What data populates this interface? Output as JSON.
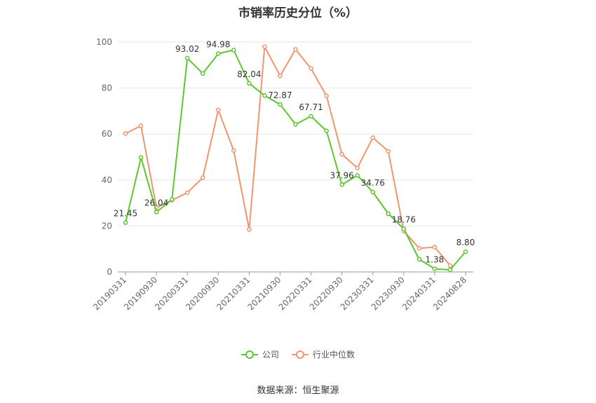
{
  "title": "市销率历史分位（%）",
  "source": "数据来源：恒生聚源",
  "legend": {
    "company": "公司",
    "industry": "行业中位数"
  },
  "colors": {
    "company": "#5bc82d",
    "industry": "#f0956c",
    "grid": "#e6e6e6",
    "axis": "#999999",
    "text": "#666666"
  },
  "chart_data": {
    "type": "line",
    "xlabel": "",
    "ylabel": "",
    "ylim": [
      0,
      100
    ],
    "yticks": [
      0,
      20,
      40,
      60,
      80,
      100
    ],
    "x_tick_labels": [
      "20190331",
      "20190930",
      "20200331",
      "20200930",
      "20210331",
      "20210930",
      "20220331",
      "20220930",
      "20230331",
      "20230930",
      "20240331",
      "20240828"
    ],
    "x_tick_indices": [
      0,
      2,
      4,
      6,
      8,
      10,
      12,
      14,
      16,
      18,
      20,
      22
    ],
    "series": [
      {
        "name": "公司",
        "values": [
          21.45,
          49.8,
          26.04,
          31.5,
          93.02,
          86.3,
          94.98,
          96.5,
          82.04,
          76.7,
          72.87,
          64.2,
          67.71,
          61.4,
          37.96,
          42.0,
          34.76,
          25.3,
          18.76,
          5.5,
          1.38,
          0.9,
          8.8
        ],
        "labels": [
          "21.45",
          "",
          "26.04",
          "",
          "93.02",
          "",
          "94.98",
          "",
          "82.04",
          "",
          "72.87",
          "",
          "67.71",
          "",
          "37.96",
          "",
          "34.76",
          "",
          "18.76",
          "",
          "1.38",
          "",
          "8.80"
        ]
      },
      {
        "name": "行业中位数",
        "values": [
          60.2,
          63.6,
          28.0,
          31.2,
          34.5,
          41.0,
          70.5,
          52.8,
          18.5,
          98.0,
          85.3,
          96.8,
          88.5,
          76.6,
          51.2,
          45.2,
          58.4,
          52.5,
          17.8,
          10.3,
          10.8,
          2.8,
          null
        ]
      }
    ]
  }
}
